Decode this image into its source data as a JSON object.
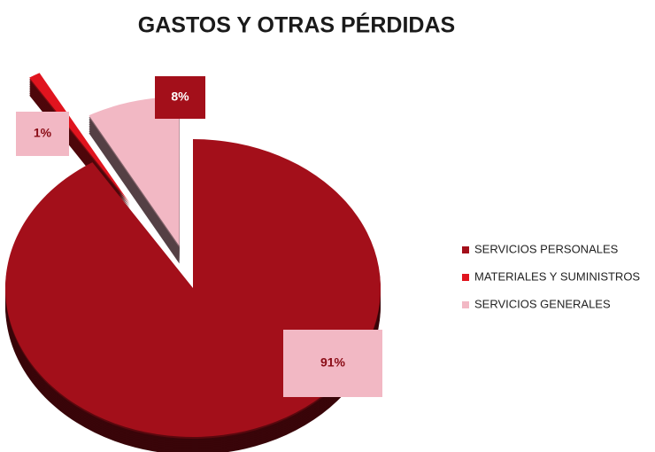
{
  "chart_data": {
    "type": "pie",
    "title": "GASTOS Y OTRAS PÉRDIDAS",
    "categories": [
      "SERVICIOS PERSONALES",
      "MATERIALES Y SUMINISTROS",
      "SERVICIOS GENERALES"
    ],
    "values": [
      91,
      1,
      8
    ],
    "value_labels": [
      "91%",
      "1%",
      "8%"
    ],
    "colors": [
      "#a30f1a",
      "#e0141e",
      "#f2b8c4"
    ],
    "legend": "right"
  }
}
